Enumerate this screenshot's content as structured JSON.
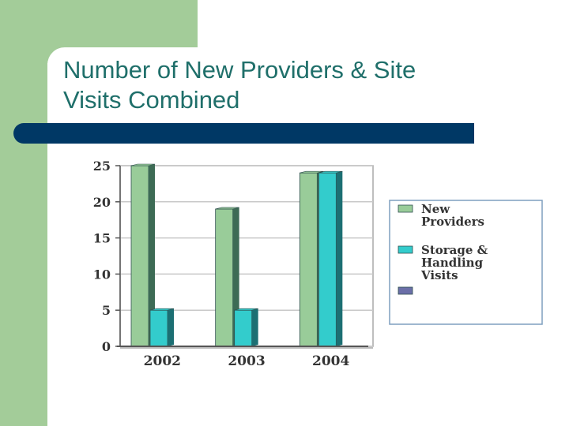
{
  "slide": {
    "title": "Number of New Providers & Site\nVisits Combined",
    "colors": {
      "green_accent": "#a3cc99",
      "title_text": "#1f6f6a",
      "title_bar": "#003865"
    }
  },
  "chart_data": {
    "type": "bar",
    "title": "",
    "xlabel": "",
    "ylabel": "",
    "categories": [
      "2002",
      "2003",
      "2004"
    ],
    "ylim": [
      0,
      25
    ],
    "yticks": [
      0,
      5,
      10,
      15,
      20,
      25
    ],
    "grid": true,
    "legend_position": "right",
    "series": [
      {
        "name": "New Providers",
        "values": [
          25,
          19,
          24
        ],
        "color": "#99cc99",
        "side_color": "#3d6b55"
      },
      {
        "name": "Storage & Handling Visits",
        "values": [
          5,
          5,
          24
        ],
        "color": "#33cccc",
        "side_color": "#1c6f73"
      },
      {
        "name": "",
        "values": [
          0,
          0,
          0
        ],
        "color": "#6b6fa8",
        "side_color": "#3b3f70"
      }
    ],
    "legend_lines": [
      [
        "New",
        "Providers"
      ],
      [
        "Storage &",
        "Handling",
        "Visits"
      ],
      []
    ]
  }
}
